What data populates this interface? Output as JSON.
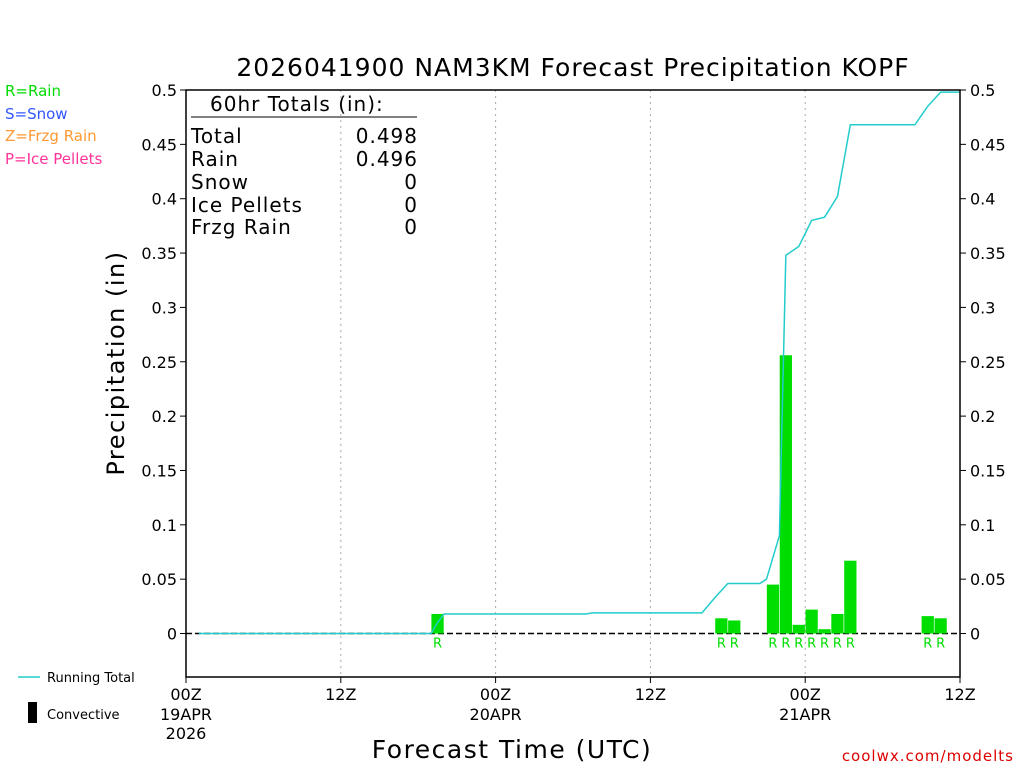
{
  "chart_data": {
    "type": "bar",
    "title": "2026041900 NAM3KM Forecast Precipitation KOPF",
    "xlabel": "Forecast Time (UTC)",
    "ylabel": "Precipitation (in)",
    "ylim": [
      -0.04,
      0.5
    ],
    "yticks": [
      0,
      0.05,
      0.1,
      0.15,
      0.2,
      0.25,
      0.3,
      0.35,
      0.4,
      0.45,
      0.5
    ],
    "ytick_labels": [
      "0",
      "0.05",
      "0.1",
      "0.15",
      "0.2",
      "0.25",
      "0.3",
      "0.35",
      "0.4",
      "0.45",
      "0.5"
    ],
    "xlim_hours": [
      0,
      60
    ],
    "x_ticks": [
      {
        "hour": 0,
        "label": "00Z",
        "date": "19APR",
        "year": "2026"
      },
      {
        "hour": 12,
        "label": "12Z",
        "date": "",
        "year": ""
      },
      {
        "hour": 24,
        "label": "00Z",
        "date": "20APR",
        "year": ""
      },
      {
        "hour": 36,
        "label": "12Z",
        "date": "",
        "year": ""
      },
      {
        "hour": 48,
        "label": "00Z",
        "date": "21APR",
        "year": ""
      },
      {
        "hour": 60,
        "label": "12Z",
        "date": "",
        "year": ""
      }
    ],
    "bars": [
      {
        "hour": 19.5,
        "value": 0.018,
        "type": "R"
      },
      {
        "hour": 41.5,
        "value": 0.014,
        "type": "R"
      },
      {
        "hour": 42.5,
        "value": 0.012,
        "type": "R"
      },
      {
        "hour": 45.5,
        "value": 0.045,
        "type": "R"
      },
      {
        "hour": 46.5,
        "value": 0.256,
        "type": "R"
      },
      {
        "hour": 47.5,
        "value": 0.008,
        "type": "R"
      },
      {
        "hour": 48.5,
        "value": 0.022,
        "type": "R"
      },
      {
        "hour": 49.5,
        "value": 0.004,
        "type": "R"
      },
      {
        "hour": 50.5,
        "value": 0.018,
        "type": "R"
      },
      {
        "hour": 51.5,
        "value": 0.067,
        "type": "R"
      },
      {
        "hour": 57.5,
        "value": 0.016,
        "type": "R"
      },
      {
        "hour": 58.5,
        "value": 0.014,
        "type": "R"
      }
    ],
    "running_total": {
      "x": [
        1,
        19,
        19.5,
        20,
        24,
        31,
        31.5,
        40,
        41,
        42,
        44.5,
        45,
        46,
        46.5,
        47.5,
        48.5,
        49.5,
        50.5,
        51.5,
        52.5,
        56.5,
        57.5,
        58.5,
        60
      ],
      "y": [
        0,
        0,
        0.01,
        0.018,
        0.018,
        0.018,
        0.019,
        0.019,
        0.033,
        0.046,
        0.046,
        0.05,
        0.09,
        0.348,
        0.356,
        0.38,
        0.383,
        0.402,
        0.468,
        0.468,
        0.468,
        0.485,
        0.498,
        0.498
      ]
    },
    "colors": {
      "rain": "#00dd00",
      "snow": "#3355ff",
      "frzg_rain": "#ff9933",
      "ice_pellets": "#ff3399",
      "running_total": "#22cccc",
      "convective": "#000000",
      "grid": "#aaaaaa",
      "credit": "#dd0000"
    },
    "type_legend": [
      "R=Rain",
      "S=Snow",
      "Z=Frzg Rain",
      "P=Ice Pellets"
    ],
    "totals_box": {
      "header": "60hr Totals (in):",
      "rows": [
        {
          "label": "Total",
          "value": "0.498"
        },
        {
          "label": "Rain",
          "value": "0.496"
        },
        {
          "label": "Snow",
          "value": "0"
        },
        {
          "label": "Ice Pellets",
          "value": "0"
        },
        {
          "label": "Frzg Rain",
          "value": "0"
        }
      ]
    },
    "line_legend": {
      "running_total": "Running Total",
      "convective": "Convective"
    },
    "credit": "coolwx.com/modelts"
  }
}
